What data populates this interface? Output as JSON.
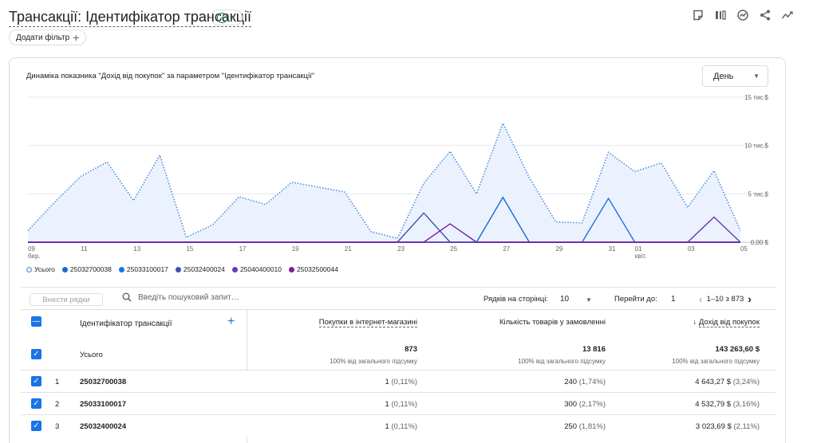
{
  "header": {
    "title": "Трансакції: Ідентифікатор трансакції",
    "add_filter_label": "Додати фільтр"
  },
  "icons": [
    "chart-note-icon",
    "compare-columns-icon",
    "insights-icon",
    "share-icon",
    "trend-icon"
  ],
  "chart_card": {
    "title": "Динаміка показника \"Дохід від покупок\" за параметром \"Ідентифікатор трансакції\"",
    "period_value": "День"
  },
  "chart_data": {
    "type": "line",
    "x": [
      "09 бер.",
      "10",
      "11",
      "12",
      "13",
      "14",
      "15",
      "16",
      "17",
      "18",
      "19",
      "20",
      "21",
      "22",
      "23",
      "24",
      "25",
      "26",
      "27",
      "28",
      "29",
      "30",
      "31",
      "01 квіт.",
      "02",
      "03",
      "04",
      "05"
    ],
    "x_tick_labels": [
      {
        "label": "09",
        "sub": "бер.",
        "index": 0
      },
      {
        "label": "11",
        "sub": "",
        "index": 2
      },
      {
        "label": "13",
        "sub": "",
        "index": 4
      },
      {
        "label": "15",
        "sub": "",
        "index": 6
      },
      {
        "label": "17",
        "sub": "",
        "index": 8
      },
      {
        "label": "19",
        "sub": "",
        "index": 10
      },
      {
        "label": "21",
        "sub": "",
        "index": 12
      },
      {
        "label": "23",
        "sub": "",
        "index": 14
      },
      {
        "label": "25",
        "sub": "",
        "index": 16
      },
      {
        "label": "27",
        "sub": "",
        "index": 18
      },
      {
        "label": "29",
        "sub": "",
        "index": 20
      },
      {
        "label": "31",
        "sub": "",
        "index": 22
      },
      {
        "label": "01",
        "sub": "квіт.",
        "index": 23
      },
      {
        "label": "03",
        "sub": "",
        "index": 25
      },
      {
        "label": "05",
        "sub": "",
        "index": 27
      }
    ],
    "y_ticks": [
      {
        "value": 0,
        "label": "0,00 $"
      },
      {
        "value": 5000,
        "label": "5 тис.$"
      },
      {
        "value": 10000,
        "label": "10 тис.$"
      },
      {
        "value": 15000,
        "label": "15 тис.$"
      }
    ],
    "ylim": [
      0,
      15000
    ],
    "grid": true,
    "legend_position": "bottom-left",
    "series": [
      {
        "name": "Усього",
        "color": "#4a90d9",
        "style": "dotted-area",
        "values": [
          1200,
          4100,
          6800,
          8300,
          4300,
          9000,
          500,
          1800,
          4700,
          3900,
          6200,
          5700,
          5200,
          1100,
          400,
          6100,
          9400,
          5000,
          12300,
          6700,
          2100,
          2000,
          9300,
          7300,
          8200,
          3600,
          7400,
          1200
        ]
      },
      {
        "name": "25032700038",
        "color": "#1967d2",
        "style": "line",
        "values": [
          0,
          0,
          0,
          0,
          0,
          0,
          0,
          0,
          0,
          0,
          0,
          0,
          0,
          0,
          0,
          0,
          0,
          0,
          4643.27,
          0,
          0,
          0,
          0,
          0,
          0,
          0,
          0,
          0
        ]
      },
      {
        "name": "25033100017",
        "color": "#1a73e8",
        "style": "line",
        "values": [
          0,
          0,
          0,
          0,
          0,
          0,
          0,
          0,
          0,
          0,
          0,
          0,
          0,
          0,
          0,
          0,
          0,
          0,
          0,
          0,
          0,
          0,
          4532.79,
          0,
          0,
          0,
          0,
          0
        ]
      },
      {
        "name": "25032400024",
        "color": "#3f51b5",
        "style": "line",
        "values": [
          0,
          0,
          0,
          0,
          0,
          0,
          0,
          0,
          0,
          0,
          0,
          0,
          0,
          0,
          0,
          3023.69,
          0,
          0,
          0,
          0,
          0,
          0,
          0,
          0,
          0,
          0,
          0,
          0
        ]
      },
      {
        "name": "25040400010",
        "color": "#673ab7",
        "style": "line",
        "values": [
          0,
          0,
          0,
          0,
          0,
          0,
          0,
          0,
          0,
          0,
          0,
          0,
          0,
          0,
          0,
          0,
          0,
          0,
          0,
          0,
          0,
          0,
          0,
          0,
          0,
          0,
          2600,
          0
        ]
      },
      {
        "name": "25032500044",
        "color": "#7b1fa2",
        "style": "line",
        "values": [
          0,
          0,
          0,
          0,
          0,
          0,
          0,
          0,
          0,
          0,
          0,
          0,
          0,
          0,
          0,
          0,
          1900,
          0,
          0,
          0,
          0,
          0,
          0,
          0,
          0,
          0,
          0,
          0
        ]
      }
    ]
  },
  "controls": {
    "insert_rows_label": "Внести рядки",
    "search_placeholder": "Введіть пошуковий запит…",
    "rows_per_page_label": "Рядків на сторінці:",
    "rows_per_page_value": "10",
    "goto_label": "Перейти до:",
    "goto_value": "1",
    "page_info": "1–10 з 873"
  },
  "table": {
    "dimension_header": "Ідентифікатор трансакції",
    "columns": [
      {
        "label": "Покупки в інтернет-магазині",
        "sort": "",
        "underlined": true
      },
      {
        "label": "Кількість товарів у замовленні",
        "sort": "",
        "underlined": false
      },
      {
        "label": "Дохід від покупок",
        "sort": "↓",
        "underlined": true
      }
    ],
    "total": {
      "label": "Усього",
      "values": [
        "873",
        "13 816",
        "143 263,60 $"
      ],
      "percents": [
        "100% від загального підсумку",
        "100% від загального підсумку",
        "100% від загального підсумку"
      ]
    },
    "rows": [
      {
        "num": "1",
        "id": "25032700038",
        "cells": [
          {
            "v": "1",
            "p": "(0,11%)"
          },
          {
            "v": "240",
            "p": "(1,74%)"
          },
          {
            "v": "4 643,27 $",
            "p": "(3,24%)"
          }
        ]
      },
      {
        "num": "2",
        "id": "25033100017",
        "cells": [
          {
            "v": "1",
            "p": "(0,11%)"
          },
          {
            "v": "300",
            "p": "(2,17%)"
          },
          {
            "v": "4 532,79 $",
            "p": "(3,16%)"
          }
        ]
      },
      {
        "num": "3",
        "id": "25032400024",
        "cells": [
          {
            "v": "1",
            "p": "(0,11%)"
          },
          {
            "v": "250",
            "p": "(1,81%)"
          },
          {
            "v": "3 023,69 $",
            "p": "(2,11%)"
          }
        ]
      }
    ]
  }
}
